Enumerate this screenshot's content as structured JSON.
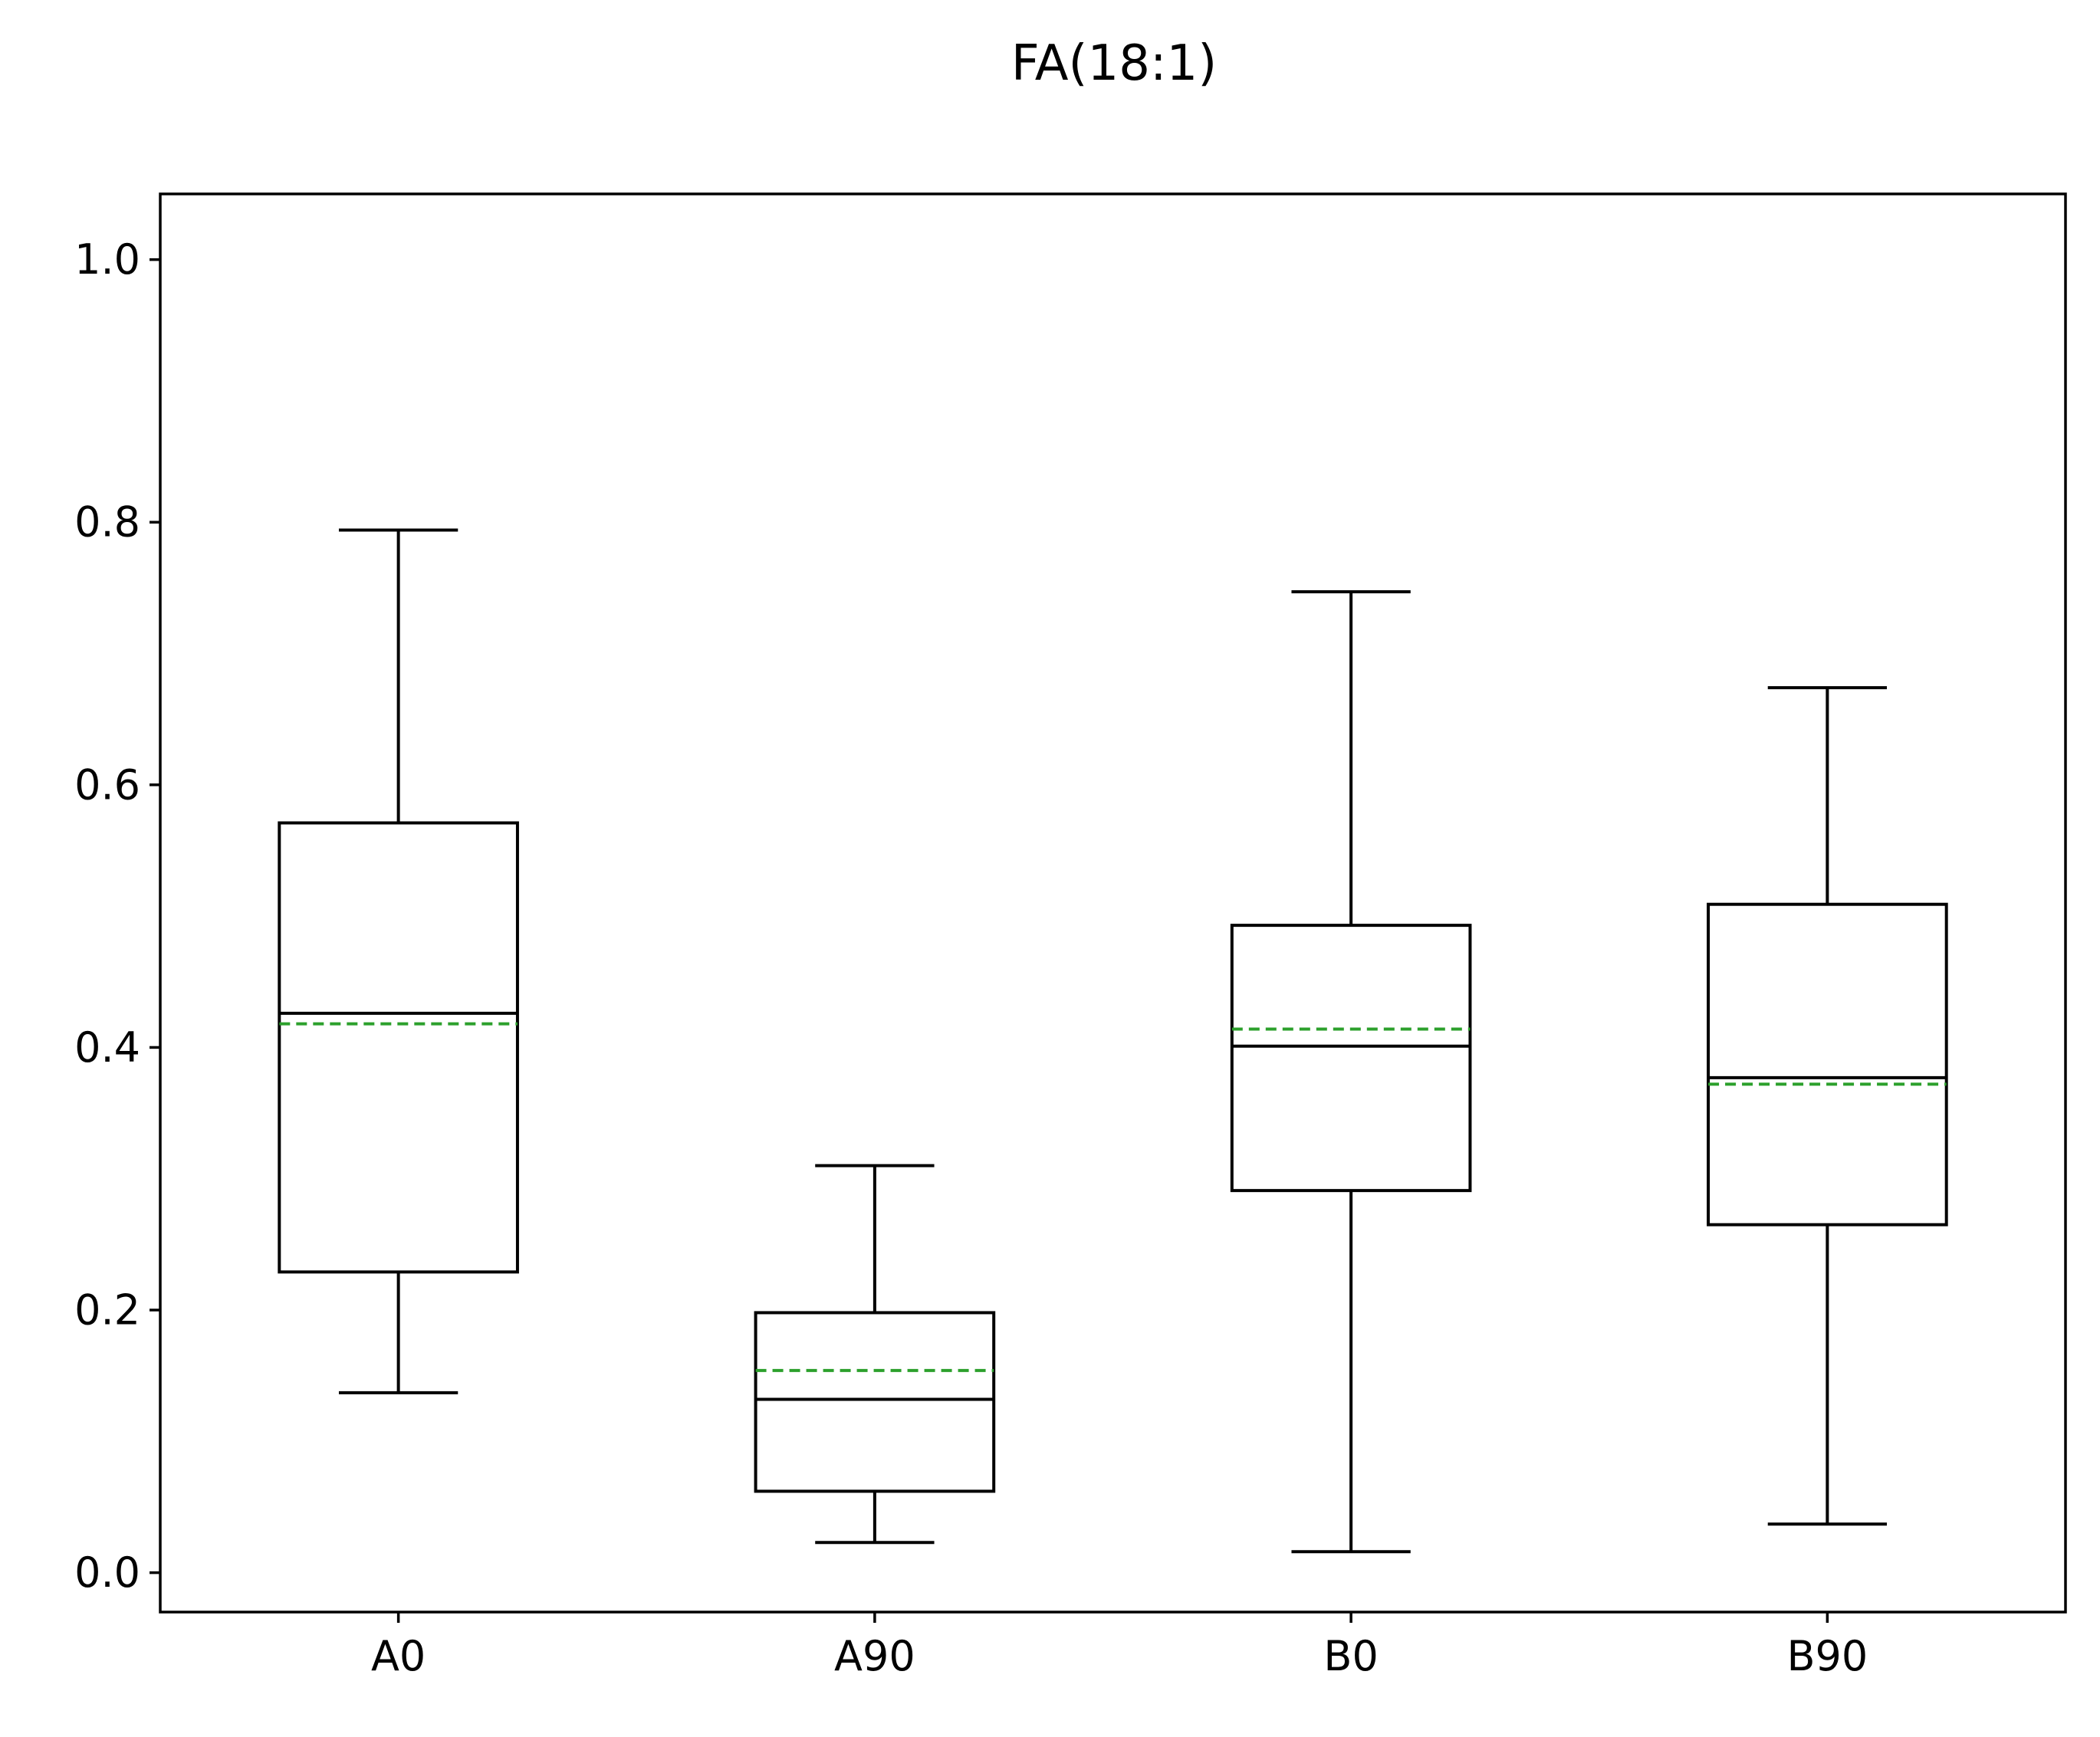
{
  "chart_data": {
    "type": "box",
    "title": "FA(18:1)",
    "xlabel": "",
    "ylabel": "",
    "categories": [
      "A0",
      "A90",
      "B0",
      "B90"
    ],
    "boxes": [
      {
        "category": "A0",
        "whisker_low": 0.137,
        "q1": 0.229,
        "median": 0.426,
        "mean": 0.418,
        "q3": 0.571,
        "whisker_high": 0.794
      },
      {
        "category": "A90",
        "whisker_low": 0.023,
        "q1": 0.062,
        "median": 0.132,
        "mean": 0.154,
        "q3": 0.198,
        "whisker_high": 0.31
      },
      {
        "category": "B0",
        "whisker_low": 0.016,
        "q1": 0.291,
        "median": 0.401,
        "mean": 0.414,
        "q3": 0.493,
        "whisker_high": 0.747
      },
      {
        "category": "B90",
        "whisker_low": 0.037,
        "q1": 0.265,
        "median": 0.377,
        "mean": 0.372,
        "q3": 0.509,
        "whisker_high": 0.674
      }
    ],
    "ylim": [
      -0.03,
      1.05
    ],
    "yticks": [
      0.0,
      0.2,
      0.4,
      0.6,
      0.8,
      1.0
    ],
    "ytick_labels": [
      "0.0",
      "0.2",
      "0.4",
      "0.6",
      "0.8",
      "1.0"
    ],
    "grid": false,
    "legend": "none",
    "colors": {
      "box": "#000000",
      "median": "#000000",
      "mean": "#2ca02c"
    }
  }
}
